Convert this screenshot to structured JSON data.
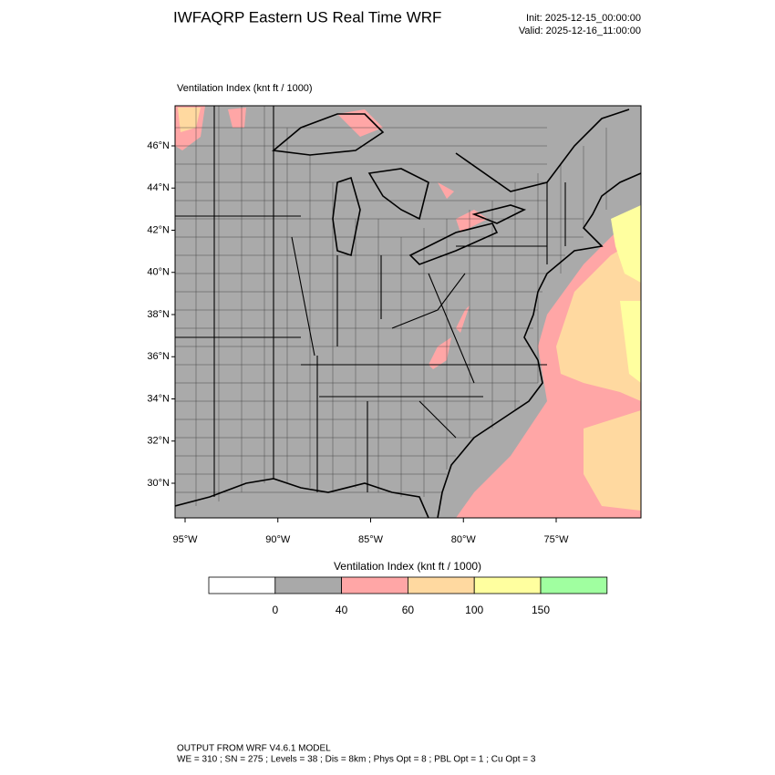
{
  "header": {
    "title": "IWFAQRP Eastern US Real Time WRF",
    "init": "Init: 2025-12-15_00:00:00",
    "valid": "Valid: 2025-12-16_11:00:00"
  },
  "map": {
    "label": "Ventilation Index   (knt ft / 1000)",
    "lat_labels": [
      "46°N",
      "44°N",
      "42°N",
      "40°N",
      "38°N",
      "36°N",
      "34°N",
      "32°N",
      "30°N"
    ],
    "lon_labels": [
      "95°W",
      "90°W",
      "85°W",
      "80°W",
      "75°W"
    ]
  },
  "colorbar": {
    "title": "Ventilation Index  (knt ft / 1000)",
    "labels": [
      "0",
      "40",
      "60",
      "100",
      "150"
    ],
    "colors": [
      "#ffffff",
      "#a9a9a9",
      "#ffa6a6",
      "#ffd9a0",
      "#ffff9f",
      "#a0ffa0"
    ]
  },
  "footer": {
    "line1": "OUTPUT FROM WRF V4.6.1 MODEL",
    "line2": "WE = 310 ; SN = 275 ; Levels = 38 ; Dis = 8km ; Phys Opt = 8 ; PBL Opt = 1 ; Cu Opt = 3"
  }
}
